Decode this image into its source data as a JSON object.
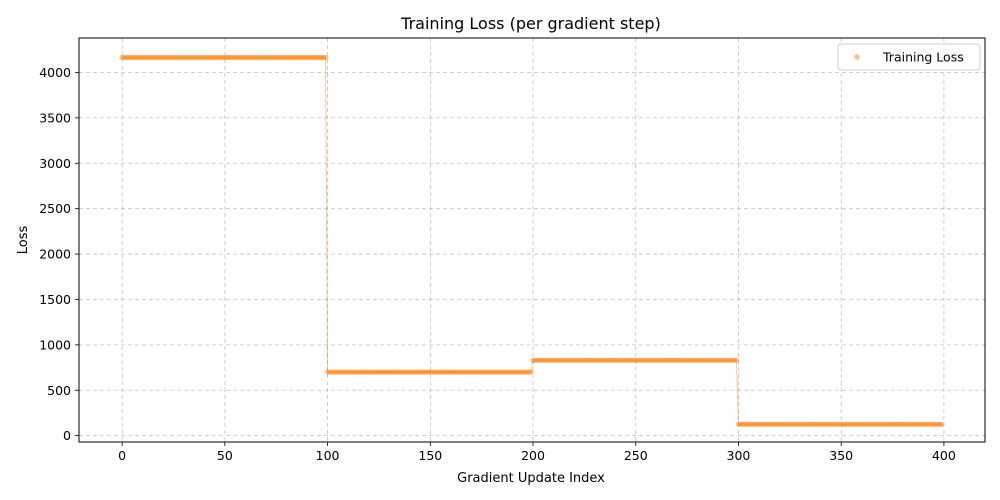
{
  "chart_data": {
    "type": "scatter",
    "title": "Training Loss (per gradient step)",
    "xlabel": "Gradient Update Index",
    "ylabel": "Loss",
    "xlim": [
      -21,
      420
    ],
    "ylim": [
      -70,
      4380
    ],
    "x_ticks": [
      0,
      50,
      100,
      150,
      200,
      250,
      300,
      350,
      400
    ],
    "y_ticks": [
      0,
      500,
      1000,
      1500,
      2000,
      2500,
      3000,
      3500,
      4000
    ],
    "grid": true,
    "grid_style": "dashed",
    "legend_position": "top-right",
    "color": "#ff7f0e",
    "connecting_line": true,
    "series": [
      {
        "name": "Training Loss",
        "segments": [
          {
            "x_start": 0,
            "x_end": 99,
            "y": 4165
          },
          {
            "x_start": 100,
            "x_end": 199,
            "y": 700
          },
          {
            "x_start": 200,
            "x_end": 299,
            "y": 830
          },
          {
            "x_start": 300,
            "x_end": 399,
            "y": 125
          }
        ]
      }
    ]
  }
}
